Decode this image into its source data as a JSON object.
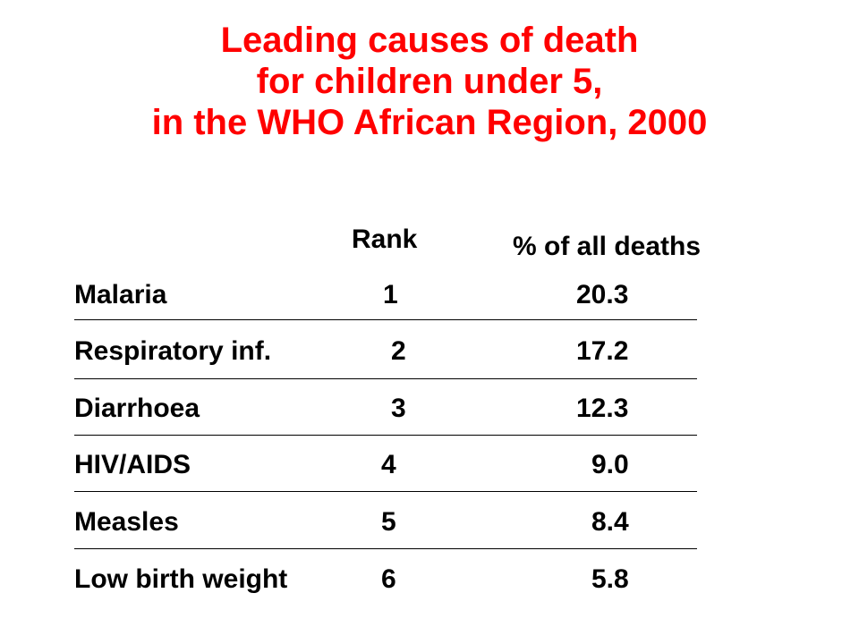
{
  "title": {
    "line1": "Leading causes of death",
    "line2": "for children under 5,",
    "line3": "in the WHO African Region, 2000"
  },
  "table": {
    "header_rank": "Rank",
    "header_pct": "% of all deaths",
    "rows": [
      {
        "cause": "Malaria",
        "rank": "1",
        "pct": "20.3"
      },
      {
        "cause": "Respiratory inf.",
        "rank": "2",
        "pct": "17.2"
      },
      {
        "cause": "Diarrhoea",
        "rank": "3",
        "pct": "12.3"
      },
      {
        "cause": "HIV/AIDS",
        "rank": "4",
        "pct": "9.0"
      },
      {
        "cause": "Measles",
        "rank": "5",
        "pct": "8.4"
      },
      {
        "cause": "Low birth weight",
        "rank": "6",
        "pct": "5.8"
      }
    ]
  },
  "colors": {
    "title": "#ff0000",
    "text": "#000000",
    "background": "#ffffff"
  }
}
